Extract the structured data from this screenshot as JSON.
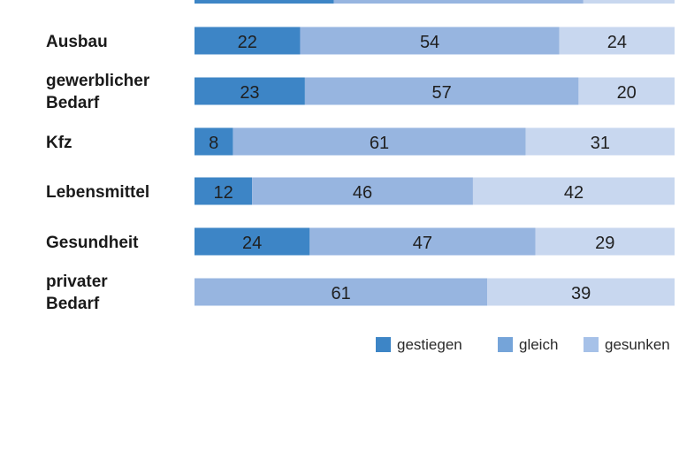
{
  "chart_data": {
    "type": "bar",
    "orientation": "horizontal",
    "stacked": true,
    "title": "",
    "xlabel": "",
    "ylabel": "",
    "xlim": [
      0,
      100
    ],
    "grid": false,
    "legend_position": "bottom-right",
    "categories": [
      [
        "Ausbau"
      ],
      [
        "gewerblicher",
        "Bedarf"
      ],
      [
        "Kfz"
      ],
      [
        "Lebensmittel"
      ],
      [
        "Gesundheit"
      ],
      [
        "privater",
        "Bedarf"
      ]
    ],
    "series": [
      {
        "name": "gestiegen",
        "color": "#3d85c6",
        "values": [
          22,
          23,
          8,
          12,
          24,
          0
        ]
      },
      {
        "name": "gleich",
        "color": "#97b5e0",
        "values": [
          54,
          57,
          61,
          46,
          47,
          61
        ]
      },
      {
        "name": "gesunken",
        "color": "#c8d7ef",
        "values": [
          24,
          20,
          31,
          42,
          29,
          39
        ]
      }
    ],
    "partial_top_row": {
      "values": [
        29,
        52,
        19
      ]
    }
  },
  "legend": {
    "swatch_colors": [
      "#3d85c6",
      "#75a4d9",
      "#a6c1e8"
    ]
  }
}
